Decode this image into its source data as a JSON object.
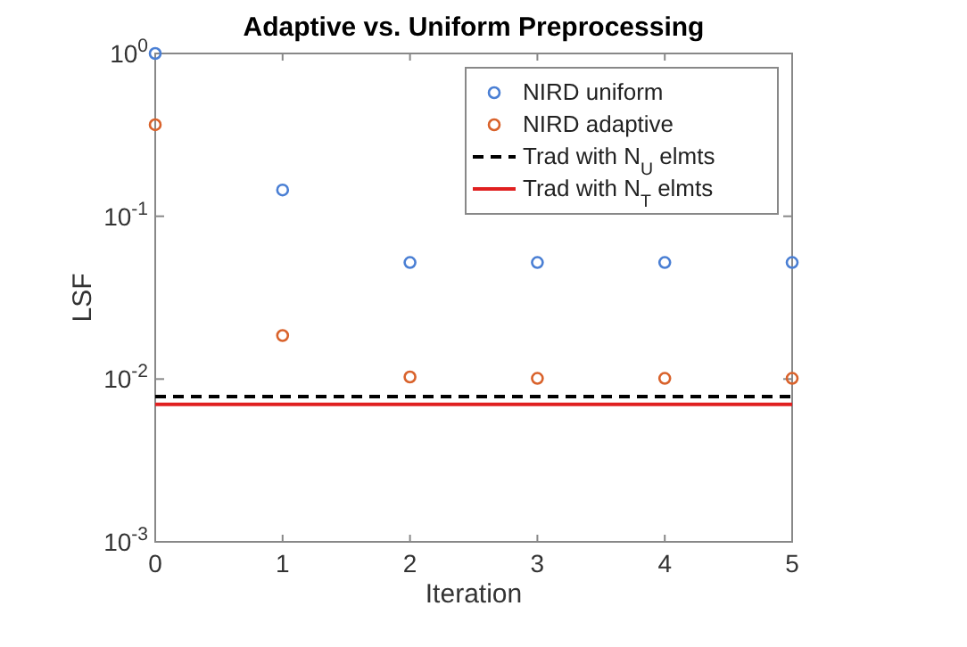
{
  "chart_data": {
    "type": "scatter",
    "title": "Adaptive vs. Uniform Preprocessing",
    "xlabel": "Iteration",
    "ylabel": "LSF",
    "x": [
      0,
      1,
      2,
      3,
      4,
      5
    ],
    "series": [
      {
        "name": "NIRD uniform",
        "color": "#4a7fd4",
        "marker": "circle",
        "values": [
          1.0,
          0.145,
          0.052,
          0.052,
          0.052,
          0.052
        ]
      },
      {
        "name": "NIRD adaptive",
        "color": "#d9622b",
        "marker": "circle",
        "values": [
          0.365,
          0.0185,
          0.0103,
          0.0101,
          0.0101,
          0.0101
        ]
      },
      {
        "name": "Trad with N$_{U}$ elmts",
        "type": "line",
        "color": "#000000",
        "line_style": "dashed",
        "marker": "none",
        "values": [
          0.0078,
          0.0078,
          0.0078,
          0.0078,
          0.0078,
          0.0078
        ]
      },
      {
        "name": "Trad with N$_{T}$ elmts",
        "type": "line",
        "color": "#e02020",
        "line_style": "solid",
        "marker": "none",
        "values": [
          0.007,
          0.007,
          0.007,
          0.007,
          0.007,
          0.007
        ]
      }
    ],
    "log": "y",
    "xlim": [
      0,
      5
    ],
    "xticks": [
      0,
      1,
      2,
      3,
      4,
      5
    ],
    "ylim": [
      0.001,
      1
    ],
    "yticks": [
      {
        "value": 0.001,
        "label": "10$^{-3}$"
      },
      {
        "value": 0.01,
        "label": "10$^{-2}$"
      },
      {
        "value": 0.1,
        "label": "10$^{-1}$"
      },
      {
        "value": 1,
        "label": "10$^{0}$"
      }
    ],
    "grid": false,
    "legend": "top right"
  }
}
